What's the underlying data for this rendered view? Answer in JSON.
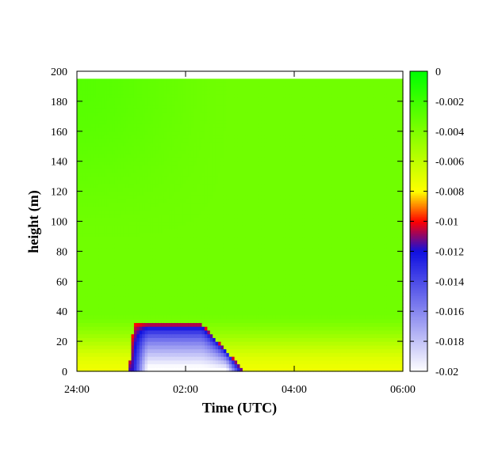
{
  "chart_data": {
    "type": "heatmap",
    "title": "",
    "xlabel": "Time (UTC)",
    "ylabel": "height (m)",
    "xlim": [
      0,
      6
    ],
    "ylim": [
      0,
      200
    ],
    "data_top_height": 195,
    "x_ticks": [
      {
        "value": 0,
        "label": "24:00"
      },
      {
        "value": 2,
        "label": "02:00"
      },
      {
        "value": 4,
        "label": "04:00"
      },
      {
        "value": 6,
        "label": "06:00"
      }
    ],
    "y_ticks": [
      {
        "value": 0,
        "label": "0"
      },
      {
        "value": 20,
        "label": "20"
      },
      {
        "value": 40,
        "label": "40"
      },
      {
        "value": 60,
        "label": "60"
      },
      {
        "value": 80,
        "label": "80"
      },
      {
        "value": 100,
        "label": "100"
      },
      {
        "value": 120,
        "label": "120"
      },
      {
        "value": 140,
        "label": "140"
      },
      {
        "value": 160,
        "label": "160"
      },
      {
        "value": 180,
        "label": "180"
      },
      {
        "value": 200,
        "label": "200"
      }
    ],
    "colorbar": {
      "range": [
        -0.02,
        0
      ],
      "ticks": [
        {
          "value": 0,
          "label": "0"
        },
        {
          "value": -0.002,
          "label": "-0.002"
        },
        {
          "value": -0.004,
          "label": "-0.004"
        },
        {
          "value": -0.006,
          "label": "-0.006"
        },
        {
          "value": -0.008,
          "label": "-0.008"
        },
        {
          "value": -0.01,
          "label": "-0.01"
        },
        {
          "value": -0.012,
          "label": "-0.012"
        },
        {
          "value": -0.014,
          "label": "-0.014"
        },
        {
          "value": -0.016,
          "label": "-0.016"
        },
        {
          "value": -0.018,
          "label": "-0.018"
        },
        {
          "value": -0.02,
          "label": "-0.02"
        }
      ],
      "color_stops": [
        {
          "value": -0.02,
          "color": "#ffffff"
        },
        {
          "value": -0.012,
          "color": "#1010e0"
        },
        {
          "value": -0.01,
          "color": "#ff0000"
        },
        {
          "value": -0.008,
          "color": "#ffff00"
        },
        {
          "value": -0.006,
          "color": "#c0ff00"
        },
        {
          "value": 0,
          "color": "#00ff00"
        }
      ]
    },
    "field_features": {
      "background_value": -0.0035,
      "surface_layer": {
        "top": 40,
        "surface_value": -0.0075
      },
      "cold_pool": {
        "t_start": 0.95,
        "t_end": 3.1,
        "plateau_t0": 1.25,
        "plateau_t1": 2.3,
        "top": 32,
        "core_value": -0.02
      }
    }
  }
}
